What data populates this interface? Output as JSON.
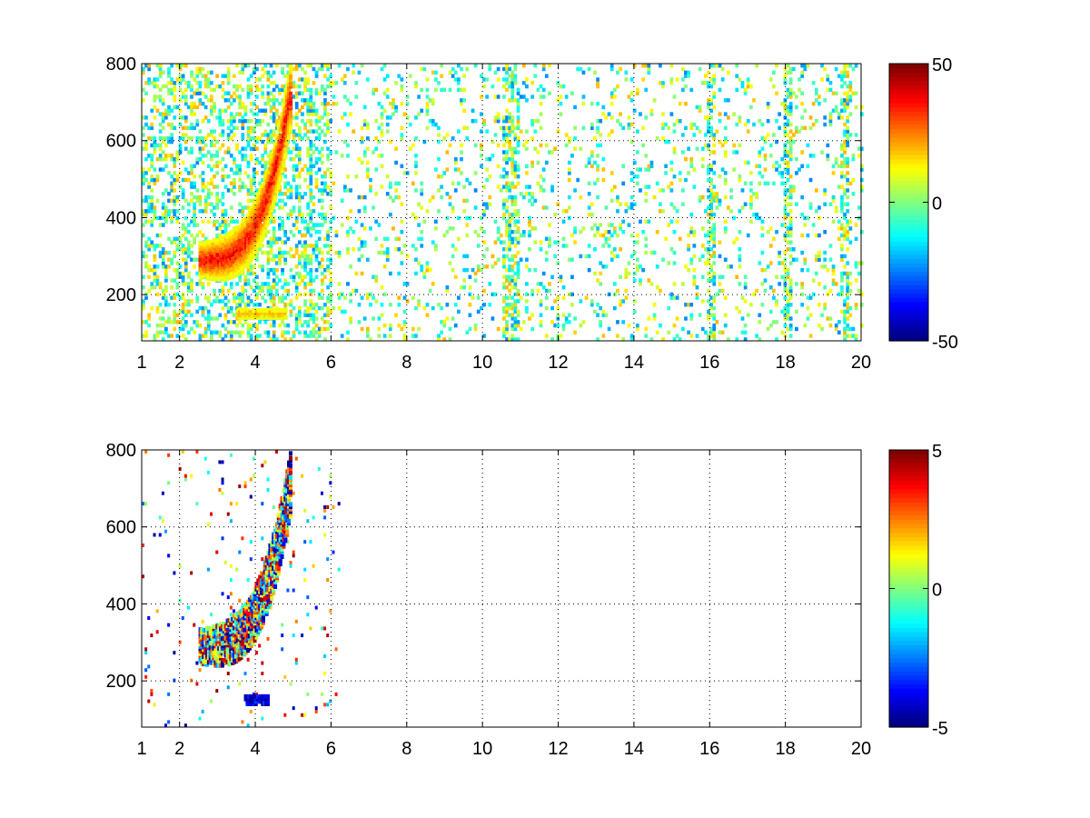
{
  "chart_data": [
    {
      "type": "heatmap",
      "title": "",
      "xlabel": "",
      "ylabel": "",
      "xlim": [
        1,
        20
      ],
      "ylim": [
        80,
        800
      ],
      "x_ticks": [
        "1",
        "2",
        "4",
        "6",
        "8",
        "10",
        "12",
        "14",
        "16",
        "18",
        "20"
      ],
      "y_ticks": [
        "200",
        "400",
        "600",
        "800"
      ],
      "grid": true,
      "colormap": "jet",
      "colorbar": {
        "min": -50,
        "max": 50,
        "ticks": [
          "50",
          "0",
          "-50"
        ]
      },
      "features": [
        {
          "name": "",
          "x_range": [
            2.5,
            4.9
          ],
          "y_range": [
            220,
            800
          ],
          "value_range": [
            10,
            45
          ]
        },
        {
          "name": "",
          "x_range": [
            3.5,
            4.8
          ],
          "y_range": [
            140,
            160
          ],
          "value_range": [
            10,
            25
          ]
        }
      ]
    },
    {
      "type": "heatmap",
      "title": "",
      "xlabel": "",
      "ylabel": "",
      "xlim": [
        1,
        20
      ],
      "ylim": [
        80,
        800
      ],
      "x_ticks": [
        "1",
        "2",
        "4",
        "6",
        "8",
        "10",
        "12",
        "14",
        "16",
        "18",
        "20"
      ],
      "y_ticks": [
        "200",
        "400",
        "600",
        "800"
      ],
      "grid": true,
      "colormap": "jet",
      "colorbar": {
        "min": -5,
        "max": 5,
        "ticks": [
          "5",
          "0",
          "-5"
        ]
      },
      "features": [
        {
          "name": "",
          "x_range": [
            2.5,
            4.9
          ],
          "y_range": [
            220,
            800
          ],
          "value_range": [
            -5,
            5
          ]
        },
        {
          "name": "",
          "x_range": [
            3.7,
            4.3
          ],
          "y_range": [
            140,
            160
          ],
          "value_range": [
            -5,
            -3
          ]
        }
      ]
    }
  ]
}
